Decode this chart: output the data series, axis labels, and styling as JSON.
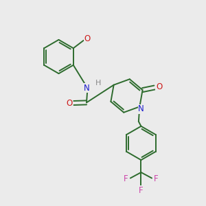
{
  "background_color": "#ebebeb",
  "bond_color": "#2d6b2d",
  "N_color": "#1a1acc",
  "O_color": "#cc1a1a",
  "F_color": "#cc44aa",
  "H_color": "#888888",
  "bond_width": 1.4,
  "figsize": [
    3.0,
    3.0
  ],
  "dpi": 100,
  "xlim": [
    0,
    10
  ],
  "ylim": [
    0,
    10
  ]
}
